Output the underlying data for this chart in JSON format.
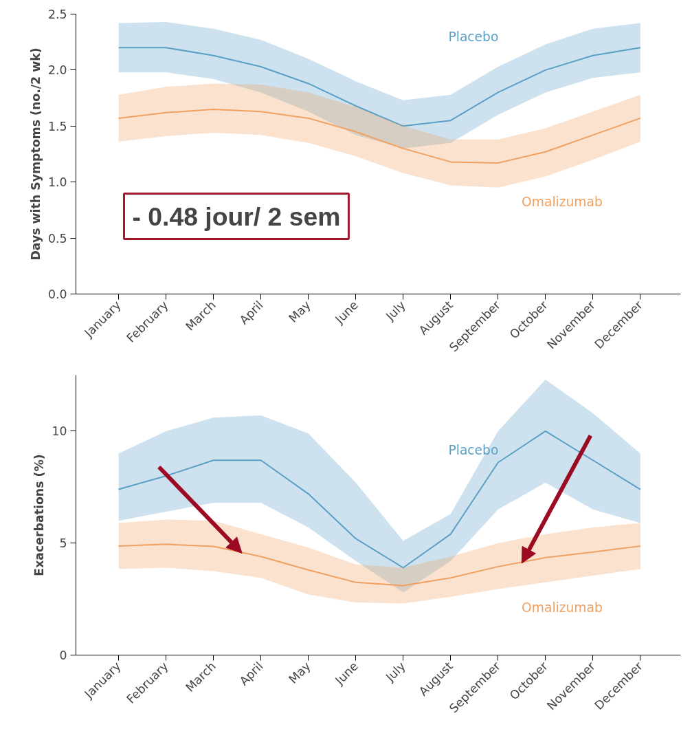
{
  "chart_data": [
    {
      "type": "line",
      "ylabel": "Days with Symptoms (no./2 wk)",
      "categories": [
        "January",
        "February",
        "March",
        "April",
        "May",
        "June",
        "July",
        "August",
        "September",
        "October",
        "November",
        "December"
      ],
      "ylim": [
        0,
        2.5
      ],
      "yticks": [
        {
          "value": 0,
          "label": "0.0"
        },
        {
          "value": 0.5,
          "label": "0.5"
        },
        {
          "value": 1,
          "label": "1.0"
        },
        {
          "value": 1.5,
          "label": "1.5"
        },
        {
          "value": 2,
          "label": "2.0"
        },
        {
          "value": 2.5,
          "label": "2.5"
        }
      ],
      "grid": false,
      "series": [
        {
          "name": "Placebo",
          "color": "#5a9fc6",
          "values": [
            2.2,
            2.2,
            2.13,
            2.03,
            1.88,
            1.68,
            1.5,
            1.55,
            1.8,
            2.0,
            2.13,
            2.2
          ],
          "lower": [
            1.98,
            1.98,
            1.92,
            1.8,
            1.63,
            1.42,
            1.3,
            1.35,
            1.6,
            1.8,
            1.93,
            1.98
          ],
          "upper": [
            2.42,
            2.43,
            2.37,
            2.27,
            2.1,
            1.9,
            1.73,
            1.78,
            2.03,
            2.23,
            2.37,
            2.42
          ]
        },
        {
          "name": "Omalizumab",
          "color": "#f0a060",
          "values": [
            1.57,
            1.62,
            1.65,
            1.63,
            1.57,
            1.45,
            1.3,
            1.18,
            1.17,
            1.27,
            1.42,
            1.57
          ],
          "lower": [
            1.36,
            1.41,
            1.44,
            1.42,
            1.35,
            1.23,
            1.08,
            0.97,
            0.95,
            1.05,
            1.2,
            1.36
          ],
          "upper": [
            1.78,
            1.85,
            1.88,
            1.87,
            1.8,
            1.67,
            1.5,
            1.38,
            1.38,
            1.48,
            1.63,
            1.78
          ]
        }
      ],
      "annotations": [
        "- 0.48 jour/ 2 sem"
      ]
    },
    {
      "type": "line",
      "ylabel": "Exacerbations (%)",
      "categories": [
        "January",
        "February",
        "March",
        "April",
        "May",
        "June",
        "July",
        "August",
        "September",
        "October",
        "November",
        "December"
      ],
      "ylim": [
        0,
        12.5
      ],
      "yticks": [
        0,
        5,
        10
      ],
      "grid": false,
      "series": [
        {
          "name": "Placebo",
          "color": "#5a9fc6",
          "values": [
            7.4,
            8.0,
            8.7,
            8.7,
            7.2,
            5.2,
            3.9,
            5.4,
            8.6,
            10.0,
            8.7,
            7.4
          ],
          "lower": [
            6.0,
            6.4,
            6.8,
            6.8,
            5.7,
            4.2,
            2.8,
            4.2,
            6.5,
            7.7,
            6.5,
            5.9
          ],
          "upper": [
            9.0,
            10.0,
            10.6,
            10.7,
            9.9,
            7.7,
            5.1,
            6.3,
            10.0,
            12.3,
            10.8,
            9.0
          ]
        },
        {
          "name": "Omalizumab",
          "color": "#f0a060",
          "values": [
            4.87,
            4.95,
            4.85,
            4.4,
            3.8,
            3.25,
            3.1,
            3.45,
            3.95,
            4.35,
            4.6,
            4.87
          ],
          "lower": [
            3.85,
            3.9,
            3.75,
            3.45,
            2.7,
            2.35,
            2.3,
            2.6,
            2.95,
            3.25,
            3.55,
            3.85
          ],
          "upper": [
            5.9,
            6.05,
            6.0,
            5.4,
            4.8,
            4.05,
            3.9,
            4.4,
            5.0,
            5.4,
            5.7,
            5.9
          ]
        }
      ]
    }
  ]
}
